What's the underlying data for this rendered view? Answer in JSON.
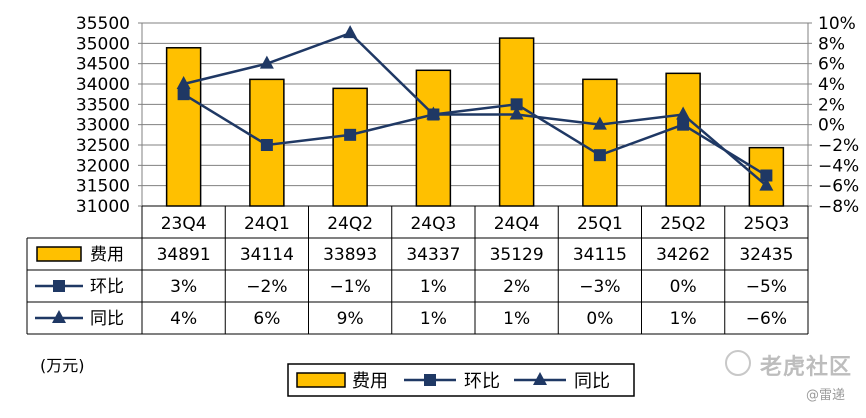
{
  "chart_data": {
    "type": "bar",
    "categories": [
      "23Q4",
      "24Q1",
      "24Q2",
      "24Q3",
      "24Q4",
      "25Q1",
      "25Q2",
      "25Q3"
    ],
    "series": [
      {
        "name": "费用",
        "kind": "bar",
        "axis": "left",
        "values": [
          34891,
          34114,
          33893,
          34337,
          35129,
          34115,
          34262,
          32435
        ]
      },
      {
        "name": "环比",
        "kind": "line",
        "marker": "square",
        "axis": "right",
        "values": [
          3,
          -2,
          -1,
          1,
          2,
          -3,
          0,
          -5
        ]
      },
      {
        "name": "同比",
        "kind": "line",
        "marker": "triangle",
        "axis": "right",
        "values": [
          4,
          6,
          9,
          1,
          1,
          0,
          1,
          -6
        ]
      }
    ],
    "table_rows": [
      [
        "34891",
        "34114",
        "33893",
        "34337",
        "35129",
        "34115",
        "34262",
        "32435"
      ],
      [
        "3%",
        "−2%",
        "−1%",
        "1%",
        "2%",
        "−3%",
        "0%",
        "−5%"
      ],
      [
        "4%",
        "6%",
        "9%",
        "1%",
        "1%",
        "0%",
        "1%",
        "−6%"
      ]
    ],
    "y_left": {
      "range": [
        31000,
        35500
      ],
      "ticks": [
        "31000",
        "31500",
        "32000",
        "32500",
        "33000",
        "33500",
        "34000",
        "34500",
        "35000",
        "35500"
      ]
    },
    "y_right": {
      "range": [
        -8,
        10
      ],
      "ticks": [
        "−8%",
        "−6%",
        "−4%",
        "−2%",
        "0%",
        "2%",
        "4%",
        "6%",
        "8%",
        "10%"
      ]
    },
    "grid": true,
    "legend_placement": "bottom",
    "colors": {
      "bar": "#FFC000",
      "bar_border": "#000000",
      "line": "#1F3864",
      "grid": "#808080"
    },
    "unit_label": "(万元)"
  },
  "watermark": {
    "text": "老虎社区",
    "sub": "@雷递"
  }
}
